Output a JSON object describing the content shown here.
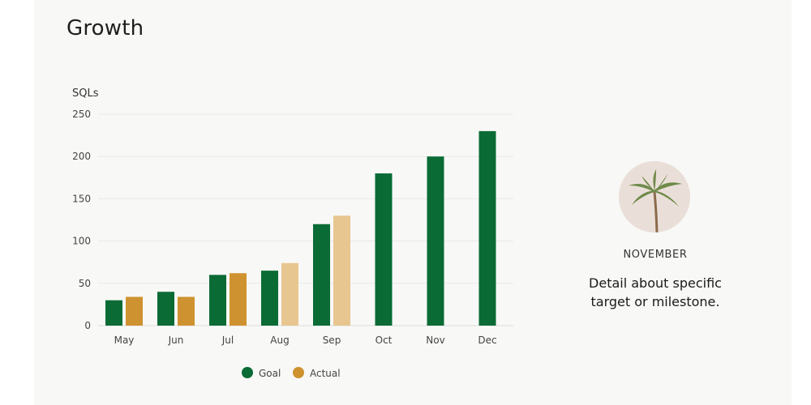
{
  "page": {
    "title": "Growth"
  },
  "chart_data": {
    "type": "bar",
    "ylabel": "SQLs",
    "ylim": [
      0,
      250
    ],
    "yticks": [
      0,
      50,
      100,
      150,
      200,
      250
    ],
    "categories": [
      "May",
      "Jun",
      "Jul",
      "Aug",
      "Sep",
      "Oct",
      "Nov",
      "Dec"
    ],
    "series": [
      {
        "name": "Goal",
        "color": "#0a6b35",
        "values": [
          30,
          40,
          60,
          65,
          120,
          180,
          200,
          230
        ]
      },
      {
        "name": "Actual",
        "color": "#cf9230",
        "faded_color": "#e7c68f",
        "values": [
          34,
          34,
          62,
          74,
          130,
          null,
          null,
          null
        ],
        "faded": [
          false,
          false,
          false,
          true,
          true,
          false,
          false,
          false
        ]
      }
    ],
    "legend_position": "bottom-center",
    "grid": true
  },
  "milestone": {
    "month": "NOVEMBER",
    "detail": "Detail about specific target or milestone."
  },
  "icons": {
    "avatar": "palm-tree-icon"
  }
}
